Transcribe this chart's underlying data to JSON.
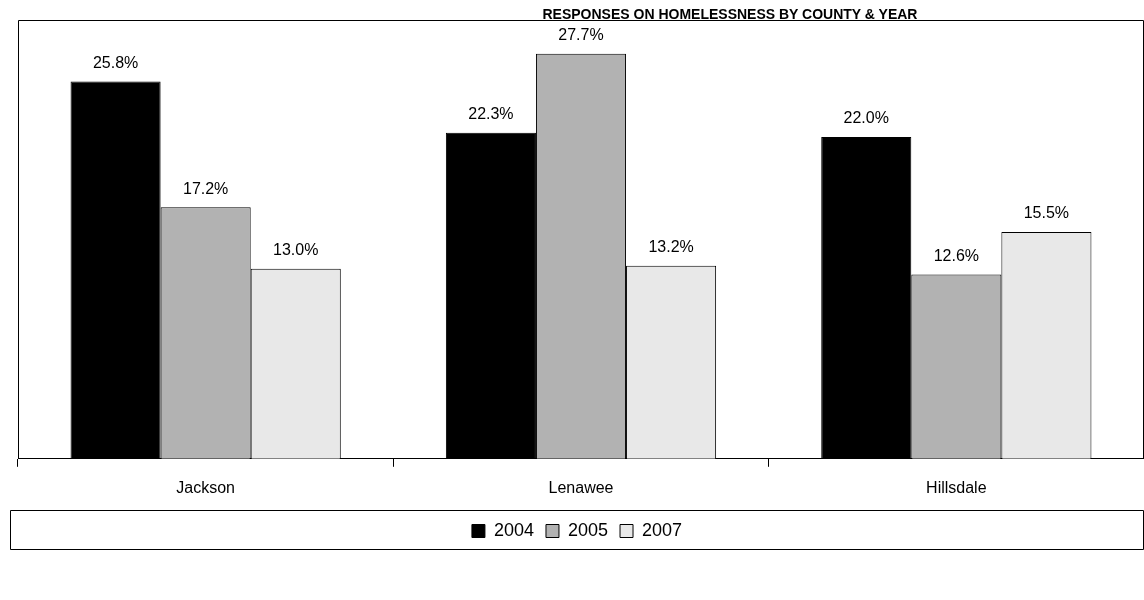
{
  "chart_data": {
    "type": "bar",
    "title": "RESPONSES  ON HOMELESSNESS BY COUNTY & YEAR",
    "categories": [
      "Jackson",
      "Lenawee",
      "Hillsdale"
    ],
    "series": [
      {
        "name": "2004",
        "color": "#000000",
        "values": [
          25.8,
          22.3,
          22.0
        ],
        "value_labels": [
          "25.8%",
          "22.3%",
          "22.0%"
        ]
      },
      {
        "name": "2005",
        "color": "#b2b2b2",
        "values": [
          17.2,
          27.7,
          12.6
        ],
        "value_labels": [
          "17.2%",
          "27.7%",
          "12.6%"
        ]
      },
      {
        "name": "2007",
        "color": "#e8e8e8",
        "values": [
          13.0,
          13.2,
          15.5
        ],
        "value_labels": [
          "13.0%",
          "13.2%",
          "15.5%"
        ]
      }
    ],
    "legend": "bottom",
    "grid": false,
    "tick_labels": "x"
  }
}
